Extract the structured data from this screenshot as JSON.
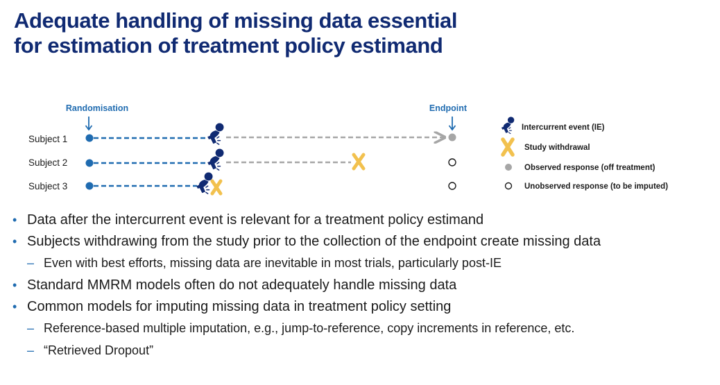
{
  "title": {
    "line1": "Adequate handling of missing data essential",
    "line2": "for estimation of treatment policy estimand"
  },
  "diagram": {
    "randomisation_label": "Randomisation",
    "endpoint_label": "Endpoint",
    "subjects": [
      {
        "label": "Subject 1",
        "outcome": "observed response (off treatment)"
      },
      {
        "label": "Subject 2",
        "outcome": "unobserved response (to be imputed)"
      },
      {
        "label": "Subject 3",
        "outcome": "unobserved response (to be imputed)"
      }
    ],
    "legend": [
      {
        "icon": "intercurrent-event-icon",
        "label": "Intercurrent event (IE)"
      },
      {
        "icon": "study-withdrawal-icon",
        "label": "Study withdrawal"
      },
      {
        "icon": "observed-response-icon",
        "label": "Observed response (off treatment)"
      },
      {
        "icon": "unobserved-response-icon",
        "label": "Unobserved response (to be imputed)"
      }
    ],
    "colors": {
      "on_treatment": "#1f6bb0",
      "off_treatment": "#a6a6a6",
      "withdrawal": "#f2c14e",
      "ie_figure": "#102a72"
    }
  },
  "bullets": [
    {
      "level": 1,
      "marker": "•",
      "text": "Data after the intercurrent event is relevant for a treatment policy estimand"
    },
    {
      "level": 1,
      "marker": "•",
      "text": "Subjects withdrawing from the study prior to the collection of the endpoint create missing data"
    },
    {
      "level": 2,
      "marker": "–",
      "text": "Even with best efforts, missing data are inevitable in most trials, particularly post-IE"
    },
    {
      "level": 1,
      "marker": "•",
      "text": "Standard MMRM models often do not adequately handle missing data"
    },
    {
      "level": 1,
      "marker": "•",
      "text": "Common models for imputing missing data in treatment policy setting"
    },
    {
      "level": 2,
      "marker": "–",
      "text": "Reference-based multiple imputation, e.g., jump-to-reference, copy increments in reference, etc."
    },
    {
      "level": 2,
      "marker": "–",
      "text": "“Retrieved Dropout”"
    }
  ]
}
